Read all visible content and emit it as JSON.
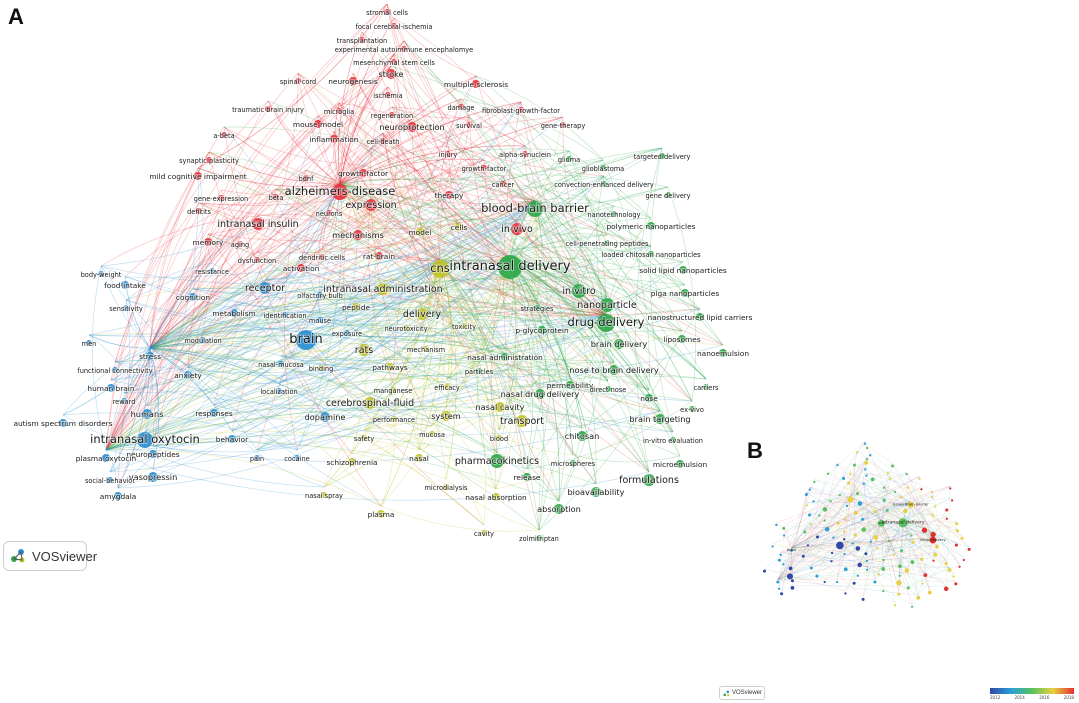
{
  "panels": {
    "a": "A",
    "b": "B"
  },
  "badge": {
    "label": "VOSviewer"
  },
  "overlay_scale": {
    "ticks": [
      "2012",
      "2014",
      "2016",
      "2018"
    ],
    "colors": [
      "#3048a8",
      "#2aa0d8",
      "#58c060",
      "#e8d040",
      "#e03030"
    ]
  },
  "clusters": {
    "red": "#e8323c",
    "green": "#2ea84a",
    "blue": "#2b8fd0",
    "yellow": "#c2c22a"
  },
  "labels_minimap": [
    "blood-brain barrier",
    "cns",
    "intranasal delivery",
    "brain",
    "drug-delivery"
  ],
  "nodes": [
    {
      "label": "stromal cells",
      "c": "red",
      "s": 3
    },
    {
      "label": "focal cerebral-ischemia",
      "c": "red",
      "s": 3
    },
    {
      "label": "transplantation",
      "c": "red",
      "s": 3
    },
    {
      "label": "experimental autoimmune encephalomye",
      "c": "red",
      "s": 3
    },
    {
      "label": "mesenchymal stem cells",
      "c": "red",
      "s": 3
    },
    {
      "label": "stroke",
      "c": "red",
      "s": 5
    },
    {
      "label": "spinal-cord",
      "c": "red",
      "s": 3
    },
    {
      "label": "neurogenesis",
      "c": "red",
      "s": 4
    },
    {
      "label": "multiple sclerosis",
      "c": "red",
      "s": 4
    },
    {
      "label": "ischemia",
      "c": "red",
      "s": 3
    },
    {
      "label": "traumatic brain injury",
      "c": "red",
      "s": 3
    },
    {
      "label": "microglia",
      "c": "red",
      "s": 3
    },
    {
      "label": "regeneration",
      "c": "red",
      "s": 3
    },
    {
      "label": "damage",
      "c": "red",
      "s": 3
    },
    {
      "label": "fibroblast-growth-factor",
      "c": "red",
      "s": 3
    },
    {
      "label": "mouse model",
      "c": "red",
      "s": 4
    },
    {
      "label": "neuroprotection",
      "c": "red",
      "s": 5
    },
    {
      "label": "survival",
      "c": "red",
      "s": 3
    },
    {
      "label": "gene-therapy",
      "c": "red",
      "s": 3
    },
    {
      "label": "a-beta",
      "c": "red",
      "s": 3
    },
    {
      "label": "inflammation",
      "c": "red",
      "s": 4
    },
    {
      "label": "cell-death",
      "c": "red",
      "s": 3
    },
    {
      "label": "injury",
      "c": "red",
      "s": 3
    },
    {
      "label": "alpha-synuclein",
      "c": "red",
      "s": 3
    },
    {
      "label": "synaptic plasticity",
      "c": "red",
      "s": 3
    },
    {
      "label": "bdnf",
      "c": "red",
      "s": 3
    },
    {
      "label": "growth-factor",
      "c": "red",
      "s": 3
    },
    {
      "label": "mild cognitive impairment",
      "c": "red",
      "s": 4
    },
    {
      "label": "growth-factor",
      "c": "red",
      "s": 4
    },
    {
      "label": "cancer",
      "c": "red",
      "s": 3
    },
    {
      "label": "gene-expression",
      "c": "red",
      "s": 3
    },
    {
      "label": "beta",
      "c": "red",
      "s": 3
    },
    {
      "label": "alzheimers-disease",
      "c": "red",
      "s": 8
    },
    {
      "label": "expression",
      "c": "red",
      "s": 6
    },
    {
      "label": "therapy",
      "c": "red",
      "s": 4
    },
    {
      "label": "deficits",
      "c": "red",
      "s": 3
    },
    {
      "label": "neurons",
      "c": "red",
      "s": 3
    },
    {
      "label": "intranasal insulin",
      "c": "red",
      "s": 6
    },
    {
      "label": "mechanisms",
      "c": "red",
      "s": 5
    },
    {
      "label": "memory",
      "c": "red",
      "s": 4
    },
    {
      "label": "aging",
      "c": "red",
      "s": 3
    },
    {
      "label": "dendritic cells",
      "c": "red",
      "s": 3
    },
    {
      "label": "rat-brain",
      "c": "red",
      "s": 4
    },
    {
      "label": "dysfunction",
      "c": "red",
      "s": 3
    },
    {
      "label": "activation",
      "c": "red",
      "s": 4
    },
    {
      "label": "in-vivo",
      "c": "red",
      "s": 6
    },
    {
      "label": "cells",
      "c": "yellow",
      "s": 4
    },
    {
      "label": "model",
      "c": "yellow",
      "s": 4
    },
    {
      "label": "cns",
      "c": "yellow",
      "s": 9
    },
    {
      "label": "intranasal administration",
      "c": "yellow",
      "s": 6
    },
    {
      "label": "peptide",
      "c": "yellow",
      "s": 4
    },
    {
      "label": "delivery",
      "c": "yellow",
      "s": 6
    },
    {
      "label": "rats",
      "c": "yellow",
      "s": 6
    },
    {
      "label": "neurotoxicity",
      "c": "yellow",
      "s": 3
    },
    {
      "label": "toxicity",
      "c": "yellow",
      "s": 3
    },
    {
      "label": "mechanism",
      "c": "yellow",
      "s": 3
    },
    {
      "label": "pathways",
      "c": "yellow",
      "s": 4
    },
    {
      "label": "binding",
      "c": "yellow",
      "s": 3
    },
    {
      "label": "efficacy",
      "c": "yellow",
      "s": 3
    },
    {
      "label": "manganese",
      "c": "yellow",
      "s": 3
    },
    {
      "label": "cerebrospinal-fluid",
      "c": "yellow",
      "s": 6
    },
    {
      "label": "performance",
      "c": "yellow",
      "s": 3
    },
    {
      "label": "system",
      "c": "yellow",
      "s": 5
    },
    {
      "label": "transport",
      "c": "yellow",
      "s": 6
    },
    {
      "label": "nasal cavity",
      "c": "yellow",
      "s": 5
    },
    {
      "label": "mucosa",
      "c": "yellow",
      "s": 3
    },
    {
      "label": "blood",
      "c": "yellow",
      "s": 3
    },
    {
      "label": "safety",
      "c": "yellow",
      "s": 3
    },
    {
      "label": "schizophrenia",
      "c": "yellow",
      "s": 4
    },
    {
      "label": "nasal",
      "c": "yellow",
      "s": 4
    },
    {
      "label": "microdialysis",
      "c": "yellow",
      "s": 3
    },
    {
      "label": "nasal absorption",
      "c": "yellow",
      "s": 4
    },
    {
      "label": "plasma",
      "c": "yellow",
      "s": 4
    },
    {
      "label": "cavity",
      "c": "yellow",
      "s": 3
    },
    {
      "label": "nasal spray",
      "c": "yellow",
      "s": 3
    },
    {
      "label": "blood-brain barrier",
      "c": "green",
      "s": 8
    },
    {
      "label": "intranasal delivery",
      "c": "green",
      "s": 12
    },
    {
      "label": "glioma",
      "c": "green",
      "s": 3
    },
    {
      "label": "glioblastoma",
      "c": "green",
      "s": 3
    },
    {
      "label": "targeted delivery",
      "c": "green",
      "s": 3
    },
    {
      "label": "convection-enhanced delivery",
      "c": "green",
      "s": 3
    },
    {
      "label": "gene delivery",
      "c": "green",
      "s": 3
    },
    {
      "label": "nanotechnology",
      "c": "green",
      "s": 3
    },
    {
      "label": "polymeric nanoparticles",
      "c": "green",
      "s": 4
    },
    {
      "label": "cell-penetrating peptides",
      "c": "green",
      "s": 3
    },
    {
      "label": "loaded chitosan nanoparticles",
      "c": "green",
      "s": 3
    },
    {
      "label": "solid lipid nanoparticles",
      "c": "green",
      "s": 4
    },
    {
      "label": "in-vitro",
      "c": "green",
      "s": 7
    },
    {
      "label": "plga nanoparticles",
      "c": "green",
      "s": 4
    },
    {
      "label": "nanoparticle",
      "c": "green",
      "s": 7
    },
    {
      "label": "strategies",
      "c": "green",
      "s": 3
    },
    {
      "label": "drug-delivery",
      "c": "green",
      "s": 9
    },
    {
      "label": "nanostructured lipid carriers",
      "c": "green",
      "s": 4
    },
    {
      "label": "p-glycoprotein",
      "c": "green",
      "s": 4
    },
    {
      "label": "brain delivery",
      "c": "green",
      "s": 5
    },
    {
      "label": "liposomes",
      "c": "green",
      "s": 4
    },
    {
      "label": "nasal administration",
      "c": "green",
      "s": 4
    },
    {
      "label": "nanoemulsion",
      "c": "green",
      "s": 4
    },
    {
      "label": "nose to brain delivery",
      "c": "green",
      "s": 5
    },
    {
      "label": "particles",
      "c": "green",
      "s": 3
    },
    {
      "label": "permeability",
      "c": "green",
      "s": 4
    },
    {
      "label": "carriers",
      "c": "green",
      "s": 3
    },
    {
      "label": "nasal drug delivery",
      "c": "green",
      "s": 5
    },
    {
      "label": "direct nose",
      "c": "green",
      "s": 3
    },
    {
      "label": "nose",
      "c": "green",
      "s": 4
    },
    {
      "label": "ex-vivo",
      "c": "green",
      "s": 3
    },
    {
      "label": "brain targeting",
      "c": "green",
      "s": 5
    },
    {
      "label": "chitosan",
      "c": "green",
      "s": 5
    },
    {
      "label": "in-vitro evaluation",
      "c": "green",
      "s": 3
    },
    {
      "label": "pharmacokinetics",
      "c": "green",
      "s": 7
    },
    {
      "label": "microspheres",
      "c": "green",
      "s": 3
    },
    {
      "label": "microemulsion",
      "c": "green",
      "s": 4
    },
    {
      "label": "release",
      "c": "green",
      "s": 4
    },
    {
      "label": "formulations",
      "c": "green",
      "s": 6
    },
    {
      "label": "bioavailability",
      "c": "green",
      "s": 5
    },
    {
      "label": "absorption",
      "c": "green",
      "s": 5
    },
    {
      "label": "zolmitriptan",
      "c": "green",
      "s": 3
    },
    {
      "label": "body-weight",
      "c": "blue",
      "s": 3
    },
    {
      "label": "food-intake",
      "c": "blue",
      "s": 4
    },
    {
      "label": "resistance",
      "c": "blue",
      "s": 3
    },
    {
      "label": "receptor",
      "c": "blue",
      "s": 6
    },
    {
      "label": "cognition",
      "c": "blue",
      "s": 4
    },
    {
      "label": "olfactory bulb",
      "c": "blue",
      "s": 3
    },
    {
      "label": "sensitivity",
      "c": "blue",
      "s": 3
    },
    {
      "label": "metabolism",
      "c": "blue",
      "s": 4
    },
    {
      "label": "identification",
      "c": "blue",
      "s": 3
    },
    {
      "label": "mouse",
      "c": "blue",
      "s": 3
    },
    {
      "label": "men",
      "c": "blue",
      "s": 3
    },
    {
      "label": "brain",
      "c": "blue",
      "s": 10
    },
    {
      "label": "exposure",
      "c": "blue",
      "s": 3
    },
    {
      "label": "modulation",
      "c": "blue",
      "s": 3
    },
    {
      "label": "stress",
      "c": "blue",
      "s": 4
    },
    {
      "label": "nasal-mucosa",
      "c": "blue",
      "s": 3
    },
    {
      "label": "functional connectivity",
      "c": "blue",
      "s": 3
    },
    {
      "label": "anxiety",
      "c": "blue",
      "s": 4
    },
    {
      "label": "human brain",
      "c": "blue",
      "s": 4
    },
    {
      "label": "localization",
      "c": "blue",
      "s": 3
    },
    {
      "label": "reward",
      "c": "blue",
      "s": 3
    },
    {
      "label": "humans",
      "c": "blue",
      "s": 5
    },
    {
      "label": "responses",
      "c": "blue",
      "s": 4
    },
    {
      "label": "autism spectrum disorders",
      "c": "blue",
      "s": 4
    },
    {
      "label": "dopamine",
      "c": "blue",
      "s": 5
    },
    {
      "label": "intranasal oxytocin",
      "c": "blue",
      "s": 8
    },
    {
      "label": "behavior",
      "c": "blue",
      "s": 4
    },
    {
      "label": "neuropeptides",
      "c": "blue",
      "s": 4
    },
    {
      "label": "plasma oxytocin",
      "c": "blue",
      "s": 4
    },
    {
      "label": "pain",
      "c": "blue",
      "s": 3
    },
    {
      "label": "cocaine",
      "c": "blue",
      "s": 3
    },
    {
      "label": "vasopressin",
      "c": "blue",
      "s": 5
    },
    {
      "label": "social-behavior",
      "c": "blue",
      "s": 3
    },
    {
      "label": "amygdala",
      "c": "blue",
      "s": 4
    }
  ]
}
